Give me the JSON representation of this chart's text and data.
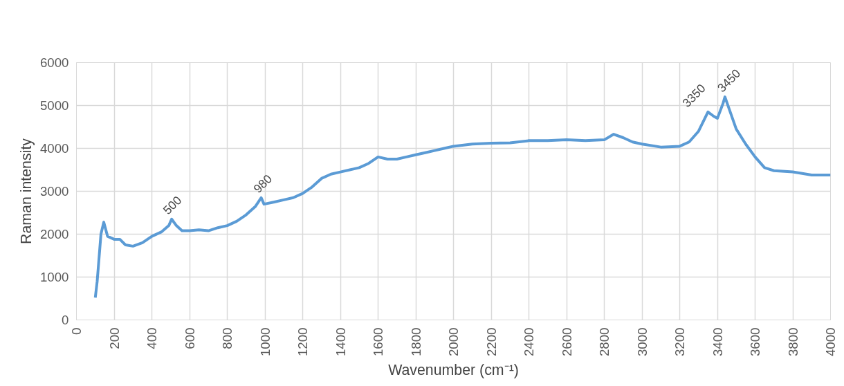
{
  "chart_data": {
    "type": "line",
    "xlabel": "Wavenumber (cm⁻¹)",
    "ylabel": "Raman intensity",
    "x": [
      100,
      110,
      130,
      145,
      165,
      200,
      230,
      260,
      300,
      350,
      400,
      450,
      490,
      505,
      530,
      560,
      600,
      650,
      700,
      750,
      800,
      850,
      900,
      950,
      980,
      995,
      1050,
      1100,
      1150,
      1200,
      1250,
      1300,
      1350,
      1400,
      1450,
      1500,
      1550,
      1600,
      1650,
      1700,
      1750,
      1800,
      1850,
      1900,
      1950,
      2000,
      2100,
      2200,
      2300,
      2400,
      2500,
      2600,
      2700,
      2800,
      2850,
      2900,
      2950,
      3000,
      3100,
      3200,
      3250,
      3300,
      3350,
      3380,
      3400,
      3430,
      3440,
      3460,
      3500,
      3550,
      3600,
      3650,
      3700,
      3800,
      3900,
      4000
    ],
    "series": [
      {
        "color": "#5b9bd5",
        "values": [
          520,
          900,
          2000,
          2280,
          1950,
          1880,
          1880,
          1750,
          1720,
          1800,
          1950,
          2050,
          2200,
          2350,
          2200,
          2080,
          2080,
          2100,
          2080,
          2150,
          2200,
          2300,
          2450,
          2650,
          2850,
          2700,
          2750,
          2800,
          2850,
          2950,
          3100,
          3300,
          3400,
          3450,
          3500,
          3550,
          3650,
          3800,
          3750,
          3750,
          3800,
          3850,
          3900,
          3950,
          4000,
          4050,
          4100,
          4120,
          4130,
          4180,
          4180,
          4200,
          4180,
          4200,
          4330,
          4250,
          4150,
          4100,
          4030,
          4050,
          4150,
          4400,
          4850,
          4750,
          4700,
          5050,
          5200,
          4950,
          4450,
          4100,
          3800,
          3550,
          3480,
          3450,
          3380,
          3380
        ]
      }
    ],
    "xlim": [
      0,
      4000
    ],
    "ylim": [
      0,
      6000
    ],
    "xticks": [
      0,
      200,
      400,
      600,
      800,
      1000,
      1200,
      1400,
      1600,
      1800,
      2000,
      2200,
      2400,
      2600,
      2800,
      3000,
      3200,
      3400,
      3600,
      3800,
      4000
    ],
    "yticks": [
      0,
      1000,
      2000,
      3000,
      4000,
      5000,
      6000
    ],
    "grid": true,
    "annotations": [
      {
        "text": "500",
        "x": 500,
        "y": 2350
      },
      {
        "text": "980",
        "x": 980,
        "y": 2850
      },
      {
        "text": "3350",
        "x": 3350,
        "y": 4850
      },
      {
        "text": "3450",
        "x": 3440,
        "y": 5200
      }
    ]
  }
}
